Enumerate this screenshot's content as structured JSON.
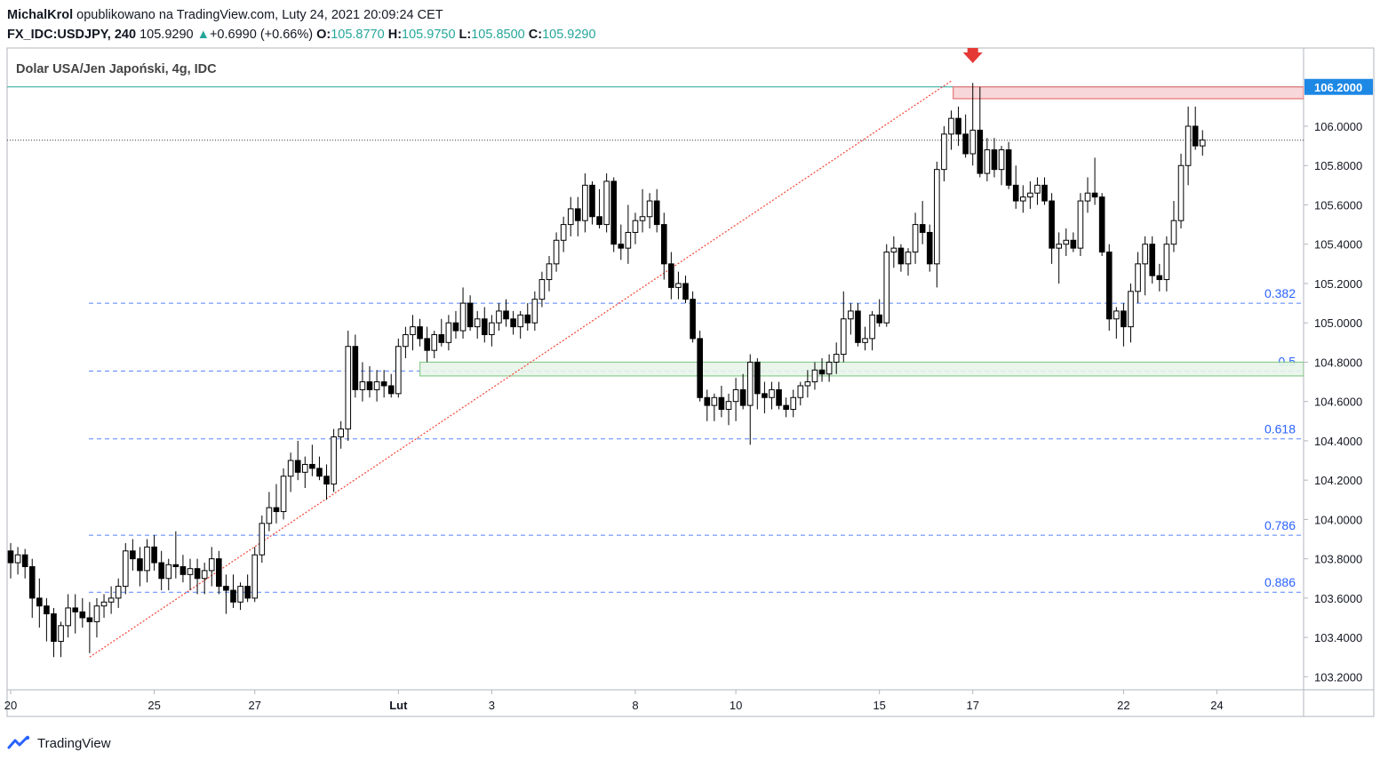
{
  "header": {
    "author": "MichalKrol",
    "published_text": "opublikowano na TradingView.com, Luty 24, 2021 20:09:24 CET",
    "symbol": "FX_IDC:USDJPY, 240",
    "last": "105.9290",
    "change_arrow": "▲",
    "change": "+0.6990 (+0.66%)",
    "o_label": "O:",
    "o": "105.8770",
    "h_label": "H:",
    "h": "105.9750",
    "l_label": "L:",
    "l": "105.8500",
    "c_label": "C:",
    "c": "105.9290"
  },
  "chart_title": "Dolar USA/Jen Japoński, 4g, IDC",
  "footer": {
    "brand": "TradingView",
    "logo_icon": "tradingview-logo-icon"
  },
  "colors": {
    "up_candle_fill": "#ffffff",
    "down_candle_fill": "#000000",
    "fib_line": "#2962ff",
    "fib_label": "#2962ff",
    "resistance_zone": "#f8d7da",
    "resistance_border": "#e57373",
    "support_zone": "#e8f5e9",
    "support_border": "#81c784",
    "trendline": "#f44336",
    "arrow": "#e53935",
    "price_badge": "#1e88e5",
    "cyan_line": "#26a69a"
  },
  "chart_data": {
    "type": "candlestick",
    "title": "Dolar USA/Jen Japoński, 4g, IDC",
    "ylim": [
      103.1,
      106.4
    ],
    "y_ticks": [
      "106.0000",
      "105.8000",
      "105.6000",
      "105.4000",
      "105.2000",
      "105.0000",
      "104.8000",
      "104.6000",
      "104.4000",
      "104.2000",
      "104.0000",
      "103.8000",
      "103.6000",
      "103.4000",
      "103.2000"
    ],
    "y_tick_values": [
      106.0,
      105.8,
      105.6,
      105.4,
      105.2,
      105.0,
      104.8,
      104.6,
      104.4,
      104.2,
      104.0,
      103.8,
      103.6,
      103.4,
      103.2
    ],
    "x_ticks": [
      {
        "label": "20",
        "bar": 0
      },
      {
        "label": "25",
        "bar": 20
      },
      {
        "label": "27",
        "bar": 34
      },
      {
        "label": "Lut",
        "bar": 54
      },
      {
        "label": "3",
        "bar": 67
      },
      {
        "label": "8",
        "bar": 87
      },
      {
        "label": "10",
        "bar": 101
      },
      {
        "label": "15",
        "bar": 121
      },
      {
        "label": "17",
        "bar": 134
      },
      {
        "label": "22",
        "bar": 155
      },
      {
        "label": "24",
        "bar": 168
      }
    ],
    "current_price": 105.929,
    "highlight_price": {
      "label": "106.2000",
      "value": 106.2
    },
    "fib_levels": [
      {
        "label": "0.382",
        "value": 105.1
      },
      {
        "label": "0.5",
        "value": 104.755
      },
      {
        "label": "0.618",
        "value": 104.41
      },
      {
        "label": "0.786",
        "value": 103.92
      },
      {
        "label": "0.886",
        "value": 103.63
      }
    ],
    "resistance_zone": {
      "low": 106.14,
      "high": 106.2,
      "from_bar": 134
    },
    "support_zone": {
      "low": 104.73,
      "high": 104.8,
      "from_bar": 57
    },
    "trendline": {
      "from": {
        "bar": 11,
        "price": 103.3
      },
      "to": {
        "bar": 131,
        "price": 106.23
      }
    },
    "arrow": {
      "bar": 134,
      "price": 106.33
    },
    "candles": [
      [
        103.84,
        103.88,
        103.7,
        103.78
      ],
      [
        103.78,
        103.86,
        103.72,
        103.82
      ],
      [
        103.82,
        103.85,
        103.7,
        103.76
      ],
      [
        103.76,
        103.8,
        103.5,
        103.6
      ],
      [
        103.6,
        103.7,
        103.45,
        103.56
      ],
      [
        103.56,
        103.6,
        103.38,
        103.52
      ],
      [
        103.52,
        103.55,
        103.3,
        103.38
      ],
      [
        103.38,
        103.48,
        103.3,
        103.46
      ],
      [
        103.46,
        103.62,
        103.4,
        103.55
      ],
      [
        103.55,
        103.62,
        103.42,
        103.53
      ],
      [
        103.53,
        103.6,
        103.45,
        103.5
      ],
      [
        103.5,
        103.58,
        103.32,
        103.48
      ],
      [
        103.48,
        103.6,
        103.4,
        103.56
      ],
      [
        103.56,
        103.62,
        103.5,
        103.58
      ],
      [
        103.58,
        103.66,
        103.52,
        103.6
      ],
      [
        103.6,
        103.7,
        103.55,
        103.66
      ],
      [
        103.66,
        103.88,
        103.62,
        103.84
      ],
      [
        103.84,
        103.9,
        103.74,
        103.8
      ],
      [
        103.8,
        103.86,
        103.66,
        103.74
      ],
      [
        103.74,
        103.9,
        103.68,
        103.86
      ],
      [
        103.86,
        103.92,
        103.74,
        103.78
      ],
      [
        103.78,
        103.84,
        103.64,
        103.7
      ],
      [
        103.7,
        103.8,
        103.64,
        103.77
      ],
      [
        103.77,
        103.94,
        103.7,
        103.76
      ],
      [
        103.76,
        103.82,
        103.68,
        103.72
      ],
      [
        103.72,
        103.8,
        103.64,
        103.75
      ],
      [
        103.75,
        103.8,
        103.62,
        103.7
      ],
      [
        103.7,
        103.78,
        103.62,
        103.74
      ],
      [
        103.74,
        103.86,
        103.66,
        103.8
      ],
      [
        103.8,
        103.84,
        103.62,
        103.66
      ],
      [
        103.66,
        103.72,
        103.52,
        103.64
      ],
      [
        103.64,
        103.72,
        103.55,
        103.58
      ],
      [
        103.58,
        103.68,
        103.54,
        103.66
      ],
      [
        103.66,
        103.72,
        103.58,
        103.6
      ],
      [
        103.6,
        103.86,
        103.58,
        103.82
      ],
      [
        103.82,
        104.02,
        103.78,
        103.98
      ],
      [
        103.98,
        104.14,
        103.94,
        104.06
      ],
      [
        104.06,
        104.18,
        103.98,
        104.04
      ],
      [
        104.04,
        104.26,
        104.0,
        104.22
      ],
      [
        104.22,
        104.34,
        104.14,
        104.3
      ],
      [
        104.3,
        104.4,
        104.2,
        104.24
      ],
      [
        104.24,
        104.32,
        104.16,
        104.28
      ],
      [
        104.28,
        104.38,
        104.22,
        104.26
      ],
      [
        104.26,
        104.32,
        104.2,
        104.22
      ],
      [
        104.22,
        104.28,
        104.1,
        104.18
      ],
      [
        104.18,
        104.46,
        104.14,
        104.42
      ],
      [
        104.42,
        104.5,
        104.36,
        104.46
      ],
      [
        104.46,
        104.96,
        104.4,
        104.88
      ],
      [
        104.88,
        104.94,
        104.62,
        104.66
      ],
      [
        104.66,
        104.8,
        104.6,
        104.7
      ],
      [
        104.7,
        104.78,
        104.62,
        104.66
      ],
      [
        104.66,
        104.76,
        104.6,
        104.7
      ],
      [
        104.7,
        104.76,
        104.62,
        104.68
      ],
      [
        104.68,
        104.74,
        104.62,
        104.64
      ],
      [
        104.64,
        104.92,
        104.62,
        104.88
      ],
      [
        104.88,
        104.98,
        104.82,
        104.94
      ],
      [
        104.94,
        105.04,
        104.86,
        104.98
      ],
      [
        104.98,
        105.02,
        104.88,
        104.92
      ],
      [
        104.92,
        104.98,
        104.8,
        104.86
      ],
      [
        104.86,
        104.96,
        104.82,
        104.94
      ],
      [
        104.94,
        105.02,
        104.88,
        104.9
      ],
      [
        104.9,
        105.04,
        104.86,
        105.0
      ],
      [
        105.0,
        105.06,
        104.92,
        104.96
      ],
      [
        104.96,
        105.18,
        104.92,
        105.1
      ],
      [
        105.1,
        105.14,
        104.96,
        104.98
      ],
      [
        104.98,
        105.06,
        104.92,
        105.02
      ],
      [
        105.02,
        105.08,
        104.9,
        104.94
      ],
      [
        104.94,
        105.04,
        104.88,
        105.0
      ],
      [
        105.0,
        105.1,
        104.96,
        105.06
      ],
      [
        105.06,
        105.12,
        104.98,
        105.02
      ],
      [
        105.02,
        105.06,
        104.94,
        104.98
      ],
      [
        104.98,
        105.06,
        104.92,
        105.04
      ],
      [
        105.04,
        105.1,
        104.96,
        105.0
      ],
      [
        105.0,
        105.16,
        104.96,
        105.12
      ],
      [
        105.12,
        105.26,
        105.08,
        105.22
      ],
      [
        105.22,
        105.34,
        105.16,
        105.3
      ],
      [
        105.3,
        105.46,
        105.26,
        105.42
      ],
      [
        105.42,
        105.54,
        105.36,
        105.5
      ],
      [
        105.5,
        105.64,
        105.44,
        105.58
      ],
      [
        105.58,
        105.64,
        105.44,
        105.52
      ],
      [
        105.52,
        105.76,
        105.46,
        105.7
      ],
      [
        105.7,
        105.72,
        105.5,
        105.54
      ],
      [
        105.54,
        105.68,
        105.48,
        105.5
      ],
      [
        105.5,
        105.76,
        105.46,
        105.72
      ],
      [
        105.72,
        105.74,
        105.36,
        105.4
      ],
      [
        105.4,
        105.5,
        105.32,
        105.38
      ],
      [
        105.38,
        105.6,
        105.3,
        105.46
      ],
      [
        105.46,
        105.56,
        105.4,
        105.52
      ],
      [
        105.52,
        105.68,
        105.46,
        105.54
      ],
      [
        105.54,
        105.66,
        105.48,
        105.62
      ],
      [
        105.62,
        105.68,
        105.46,
        105.5
      ],
      [
        105.5,
        105.56,
        105.22,
        105.3
      ],
      [
        105.3,
        105.36,
        105.12,
        105.18
      ],
      [
        105.18,
        105.26,
        105.12,
        105.2
      ],
      [
        105.2,
        105.24,
        105.1,
        105.12
      ],
      [
        105.12,
        105.16,
        104.9,
        104.92
      ],
      [
        104.92,
        104.96,
        104.6,
        104.62
      ],
      [
        104.62,
        104.66,
        104.5,
        104.58
      ],
      [
        104.58,
        104.64,
        104.5,
        104.62
      ],
      [
        104.62,
        104.68,
        104.52,
        104.56
      ],
      [
        104.56,
        104.64,
        104.48,
        104.6
      ],
      [
        104.6,
        104.72,
        104.5,
        104.66
      ],
      [
        104.66,
        104.74,
        104.56,
        104.58
      ],
      [
        104.58,
        104.84,
        104.38,
        104.8
      ],
      [
        104.8,
        104.82,
        104.56,
        104.64
      ],
      [
        104.64,
        104.7,
        104.54,
        104.62
      ],
      [
        104.62,
        104.7,
        104.56,
        104.66
      ],
      [
        104.66,
        104.7,
        104.56,
        104.58
      ],
      [
        104.58,
        104.62,
        104.52,
        104.56
      ],
      [
        104.56,
        104.66,
        104.52,
        104.62
      ],
      [
        104.62,
        104.7,
        104.58,
        104.68
      ],
      [
        104.68,
        104.76,
        104.62,
        104.7
      ],
      [
        104.7,
        104.8,
        104.66,
        104.76
      ],
      [
        104.76,
        104.82,
        104.7,
        104.74
      ],
      [
        104.74,
        104.84,
        104.7,
        104.8
      ],
      [
        104.8,
        104.9,
        104.74,
        104.84
      ],
      [
        104.84,
        105.16,
        104.8,
        105.02
      ],
      [
        105.02,
        105.1,
        104.94,
        105.06
      ],
      [
        105.06,
        105.1,
        104.88,
        104.9
      ],
      [
        104.9,
        104.98,
        104.86,
        104.92
      ],
      [
        104.92,
        105.06,
        104.86,
        105.04
      ],
      [
        105.04,
        105.12,
        104.98,
        105.0
      ],
      [
        105.0,
        105.4,
        104.98,
        105.36
      ],
      [
        105.36,
        105.44,
        105.28,
        105.38
      ],
      [
        105.38,
        105.4,
        105.26,
        105.3
      ],
      [
        105.3,
        105.38,
        105.24,
        105.36
      ],
      [
        105.36,
        105.56,
        105.3,
        105.5
      ],
      [
        105.5,
        105.62,
        105.4,
        105.46
      ],
      [
        105.46,
        105.5,
        105.26,
        105.3
      ],
      [
        105.3,
        105.82,
        105.18,
        105.78
      ],
      [
        105.78,
        106.0,
        105.72,
        105.96
      ],
      [
        105.96,
        106.08,
        105.88,
        106.04
      ],
      [
        106.04,
        106.1,
        105.9,
        105.96
      ],
      [
        105.96,
        106.06,
        105.84,
        105.86
      ],
      [
        105.86,
        106.22,
        105.8,
        105.98
      ],
      [
        105.98,
        106.2,
        105.74,
        105.76
      ],
      [
        105.76,
        105.94,
        105.72,
        105.88
      ],
      [
        105.88,
        105.94,
        105.74,
        105.78
      ],
      [
        105.78,
        105.9,
        105.7,
        105.88
      ],
      [
        105.88,
        105.92,
        105.68,
        105.7
      ],
      [
        105.7,
        105.8,
        105.58,
        105.62
      ],
      [
        105.62,
        105.7,
        105.56,
        105.64
      ],
      [
        105.64,
        105.72,
        105.58,
        105.66
      ],
      [
        105.66,
        105.74,
        105.6,
        105.7
      ],
      [
        105.7,
        105.74,
        105.6,
        105.62
      ],
      [
        105.62,
        105.66,
        105.3,
        105.38
      ],
      [
        105.38,
        105.46,
        105.2,
        105.4
      ],
      [
        105.4,
        105.48,
        105.34,
        105.42
      ],
      [
        105.42,
        105.46,
        105.36,
        105.38
      ],
      [
        105.38,
        105.66,
        105.34,
        105.62
      ],
      [
        105.62,
        105.74,
        105.56,
        105.66
      ],
      [
        105.66,
        105.84,
        105.6,
        105.64
      ],
      [
        105.64,
        105.66,
        105.34,
        105.36
      ],
      [
        105.36,
        105.4,
        104.96,
        105.02
      ],
      [
        105.02,
        105.08,
        104.92,
        105.06
      ],
      [
        105.06,
        105.1,
        104.88,
        104.98
      ],
      [
        104.98,
        105.2,
        104.9,
        105.16
      ],
      [
        105.16,
        105.36,
        105.1,
        105.3
      ],
      [
        105.3,
        105.44,
        105.14,
        105.4
      ],
      [
        105.4,
        105.44,
        105.2,
        105.24
      ],
      [
        105.24,
        105.3,
        105.16,
        105.22
      ],
      [
        105.22,
        105.44,
        105.16,
        105.4
      ],
      [
        105.4,
        105.62,
        105.36,
        105.52
      ],
      [
        105.52,
        105.86,
        105.48,
        105.8
      ],
      [
        105.8,
        106.1,
        105.7,
        106.0
      ],
      [
        106.0,
        106.1,
        105.88,
        105.9
      ],
      [
        105.9,
        105.98,
        105.85,
        105.93
      ]
    ]
  }
}
